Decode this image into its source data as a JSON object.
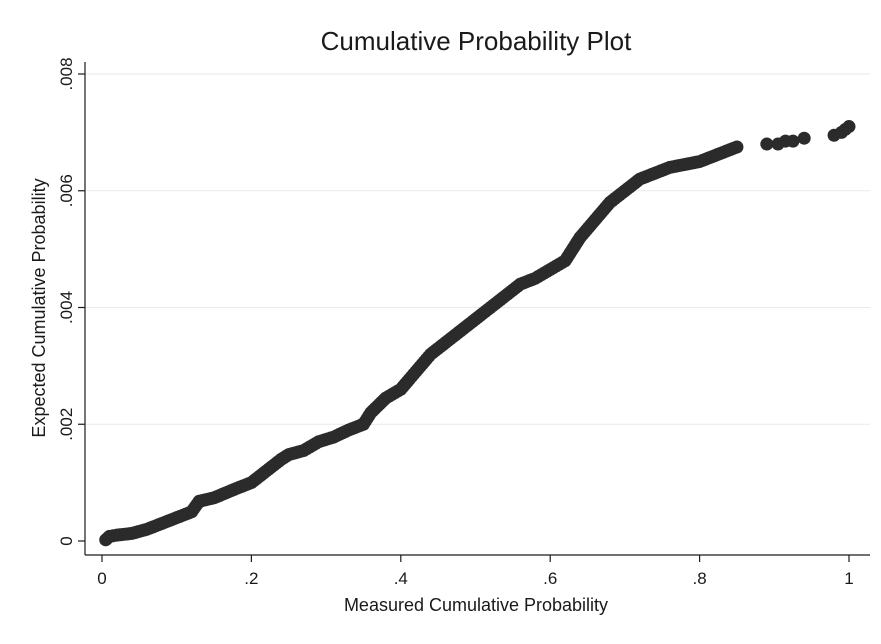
{
  "chart_data": {
    "type": "scatter",
    "title": "Cumulative Probability Plot",
    "xlabel": "Measured Cumulative Probability",
    "ylabel": "Expected Cumulative Probability",
    "xlim": [
      0,
      1
    ],
    "ylim": [
      0,
      0.008
    ],
    "xticks": [
      0,
      0.2,
      0.4,
      0.6,
      0.8,
      1
    ],
    "xtick_labels": [
      "0",
      ".2",
      ".4",
      ".6",
      ".8",
      "1"
    ],
    "yticks": [
      0,
      0.002,
      0.004,
      0.006,
      0.008
    ],
    "ytick_labels": [
      "0",
      ".002",
      ".004",
      ".006",
      ".008"
    ],
    "grid": "horizontal",
    "marker_color": "#2b2b2b",
    "curve_points": [
      [
        0.005,
        2e-05
      ],
      [
        0.01,
        8e-05
      ],
      [
        0.02,
        0.0001
      ],
      [
        0.04,
        0.00013
      ],
      [
        0.06,
        0.0002
      ],
      [
        0.08,
        0.0003
      ],
      [
        0.1,
        0.0004
      ],
      [
        0.12,
        0.0005
      ],
      [
        0.13,
        0.00068
      ],
      [
        0.15,
        0.00074
      ],
      [
        0.18,
        0.0009
      ],
      [
        0.2,
        0.001
      ],
      [
        0.22,
        0.0012
      ],
      [
        0.24,
        0.0014
      ],
      [
        0.25,
        0.00148
      ],
      [
        0.27,
        0.00155
      ],
      [
        0.29,
        0.0017
      ],
      [
        0.31,
        0.00178
      ],
      [
        0.33,
        0.0019
      ],
      [
        0.35,
        0.002
      ],
      [
        0.36,
        0.0022
      ],
      [
        0.38,
        0.00245
      ],
      [
        0.4,
        0.0026
      ],
      [
        0.42,
        0.0029
      ],
      [
        0.44,
        0.0032
      ],
      [
        0.46,
        0.0034
      ],
      [
        0.48,
        0.0036
      ],
      [
        0.5,
        0.0038
      ],
      [
        0.52,
        0.004
      ],
      [
        0.54,
        0.0042
      ],
      [
        0.56,
        0.0044
      ],
      [
        0.58,
        0.0045
      ],
      [
        0.6,
        0.00465
      ],
      [
        0.62,
        0.0048
      ],
      [
        0.64,
        0.0052
      ],
      [
        0.66,
        0.0055
      ],
      [
        0.68,
        0.0058
      ],
      [
        0.7,
        0.006
      ],
      [
        0.72,
        0.0062
      ],
      [
        0.74,
        0.0063
      ],
      [
        0.76,
        0.0064
      ],
      [
        0.78,
        0.00645
      ],
      [
        0.8,
        0.0065
      ],
      [
        0.82,
        0.0066
      ],
      [
        0.84,
        0.0067
      ],
      [
        0.85,
        0.00675
      ]
    ],
    "isolated_points": [
      [
        0.89,
        0.0068
      ],
      [
        0.905,
        0.0068
      ],
      [
        0.915,
        0.00685
      ],
      [
        0.925,
        0.00685
      ],
      [
        0.94,
        0.0069
      ],
      [
        0.98,
        0.00695
      ],
      [
        0.99,
        0.007
      ],
      [
        0.995,
        0.00705
      ],
      [
        1.0,
        0.0071
      ]
    ]
  }
}
